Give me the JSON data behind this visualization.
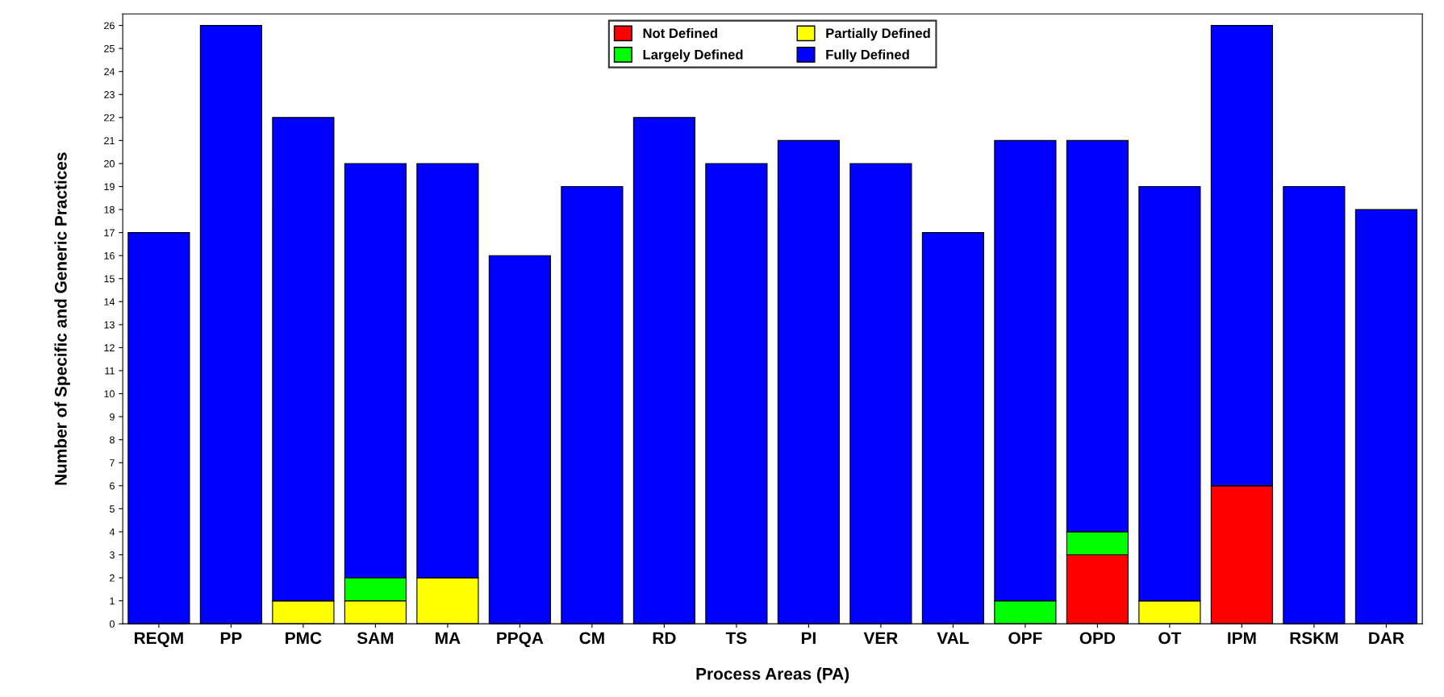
{
  "chart_data": {
    "type": "bar",
    "stacked": true,
    "xlabel": "Process Areas (PA)",
    "ylabel": "Number of Specific and Generic Practices",
    "categories": [
      "REQM",
      "PP",
      "PMC",
      "SAM",
      "MA",
      "PPQA",
      "CM",
      "RD",
      "TS",
      "PI",
      "VER",
      "VAL",
      "OPF",
      "OPD",
      "OT",
      "IPM",
      "RSKM",
      "DAR"
    ],
    "series": [
      {
        "name": "Not Defined",
        "color": "#ff0000",
        "values": [
          0,
          0,
          0,
          0,
          0,
          0,
          0,
          0,
          0,
          0,
          0,
          0,
          0,
          3,
          0,
          6,
          0,
          0
        ]
      },
      {
        "name": "Partially Defined",
        "color": "#ffff00",
        "values": [
          0,
          0,
          1,
          1,
          2,
          0,
          0,
          0,
          0,
          0,
          0,
          0,
          0,
          0,
          1,
          0,
          0,
          0
        ]
      },
      {
        "name": "Largely Defined",
        "color": "#00ff00",
        "values": [
          0,
          0,
          0,
          1,
          0,
          0,
          0,
          0,
          0,
          0,
          0,
          0,
          1,
          1,
          0,
          0,
          0,
          0
        ]
      },
      {
        "name": "Fully Defined",
        "color": "#0000ff",
        "values": [
          17,
          26,
          21,
          18,
          18,
          16,
          19,
          22,
          20,
          21,
          20,
          17,
          20,
          17,
          18,
          20,
          19,
          18
        ]
      }
    ],
    "ylim": [
      0,
      26.5
    ],
    "yticks": [
      0,
      1,
      2,
      3,
      4,
      5,
      6,
      7,
      8,
      9,
      10,
      11,
      12,
      13,
      14,
      15,
      16,
      17,
      18,
      19,
      20,
      21,
      22,
      23,
      24,
      25,
      26
    ],
    "grid": false,
    "legend": "top"
  }
}
